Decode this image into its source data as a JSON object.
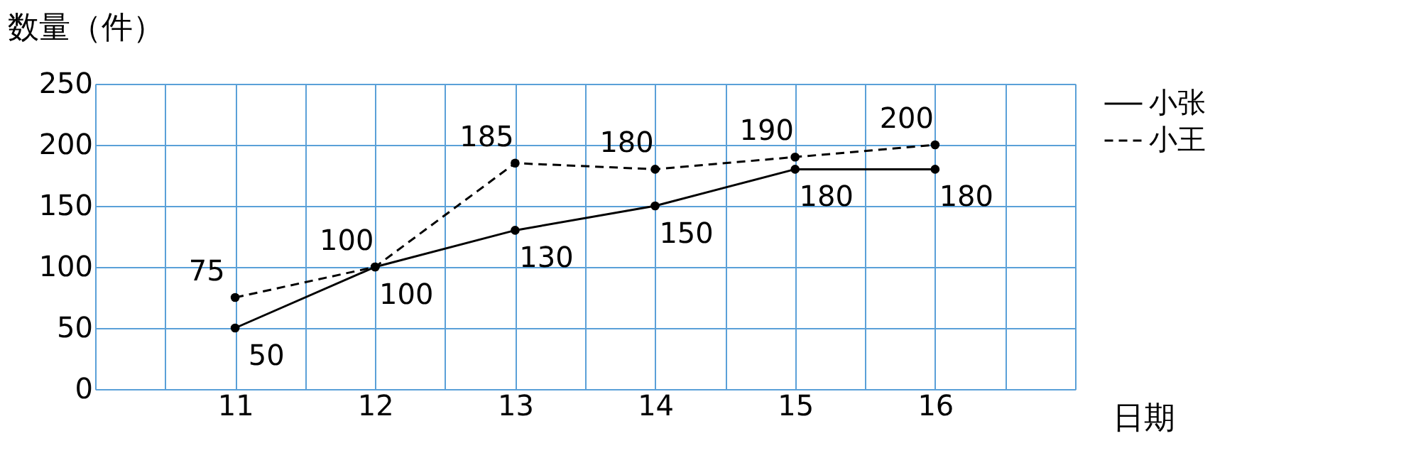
{
  "chart_data": {
    "type": "line",
    "ylabel": "数量（件）",
    "xlabel": "日期",
    "x": [
      11,
      12,
      13,
      14,
      15,
      16
    ],
    "series": [
      {
        "name": "小张",
        "color": "#000000",
        "line_style": "solid",
        "values": [
          50,
          100,
          130,
          150,
          180,
          180
        ]
      },
      {
        "name": "小王",
        "color": "#000000",
        "line_style": "dashed",
        "values": [
          75,
          100,
          185,
          180,
          190,
          200
        ]
      }
    ],
    "xlim": [
      10,
      17
    ],
    "xticks": [
      {
        "value": 10,
        "label": null
      },
      {
        "value": 10.5,
        "label": null
      },
      11,
      {
        "value": 11.5,
        "label": null
      },
      12,
      {
        "value": 12.5,
        "label": null
      },
      13,
      {
        "value": 13.5,
        "label": null
      },
      14,
      {
        "value": 14.5,
        "label": null
      },
      15,
      {
        "value": 15.5,
        "label": null
      },
      16,
      {
        "value": 16.5,
        "label": null
      },
      {
        "value": 17,
        "label": null
      }
    ],
    "ylim": [
      0,
      250
    ],
    "yticks": [
      0,
      50,
      100,
      150,
      200,
      250
    ],
    "grid": true,
    "legend": "right",
    "marker": "circle",
    "data_labels": true
  }
}
